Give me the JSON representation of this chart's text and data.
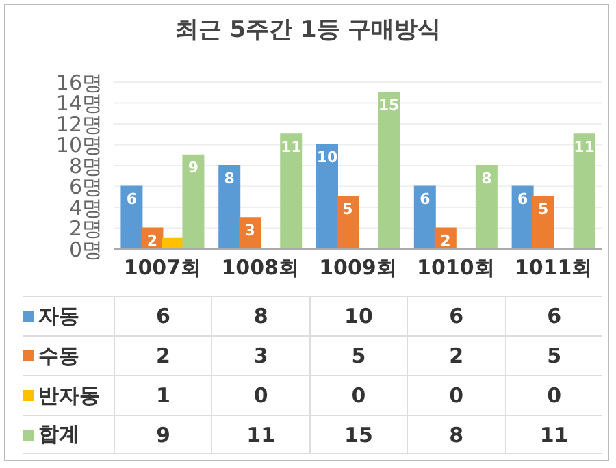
{
  "chart_data": [
    {
      "type": "bar",
      "title": "최근 5주간 1등 구매방식",
      "categories": [
        "1007회",
        "1008회",
        "1009회",
        "1010회",
        "1011회"
      ],
      "series": [
        {
          "name": "자동",
          "color": "#5b9bd5",
          "values": [
            6,
            8,
            10,
            6,
            6
          ],
          "value_labels": [
            "6",
            "8",
            "10",
            "6",
            "6"
          ]
        },
        {
          "name": "수동",
          "color": "#ed7d31",
          "values": [
            2,
            3,
            5,
            2,
            5
          ],
          "value_labels": [
            "2",
            "3",
            "5",
            "2",
            "5"
          ]
        },
        {
          "name": "반자동",
          "color": "#ffc000",
          "values": [
            1,
            0,
            0,
            0,
            0
          ],
          "value_labels": [
            null,
            null,
            null,
            null,
            null
          ]
        },
        {
          "name": "합계",
          "color": "#a9d18e",
          "values": [
            9,
            11,
            15,
            8,
            11
          ],
          "value_labels": [
            "9",
            "11",
            "15",
            "8",
            "11"
          ]
        }
      ],
      "ylim": [
        0,
        16
      ],
      "yticks": [
        {
          "value": 0,
          "label": "0명"
        },
        {
          "value": 2,
          "label": "2명"
        },
        {
          "value": 4,
          "label": "4명"
        },
        {
          "value": 6,
          "label": "6명"
        },
        {
          "value": 8,
          "label": "8명"
        },
        {
          "value": 10,
          "label": "10명"
        },
        {
          "value": 12,
          "label": "12명"
        },
        {
          "value": 14,
          "label": "14명"
        },
        {
          "value": 16,
          "label": "16명"
        }
      ],
      "grid": "y",
      "legend": "bottom"
    },
    {
      "type": "other",
      "annotations": [
        "6",
        "8",
        "10",
        "6",
        "6",
        "2",
        "3",
        "5",
        "2",
        "5",
        "1",
        "0",
        "0",
        "0",
        "0",
        "9",
        "11",
        "15",
        "8",
        "11"
      ]
    }
  ]
}
